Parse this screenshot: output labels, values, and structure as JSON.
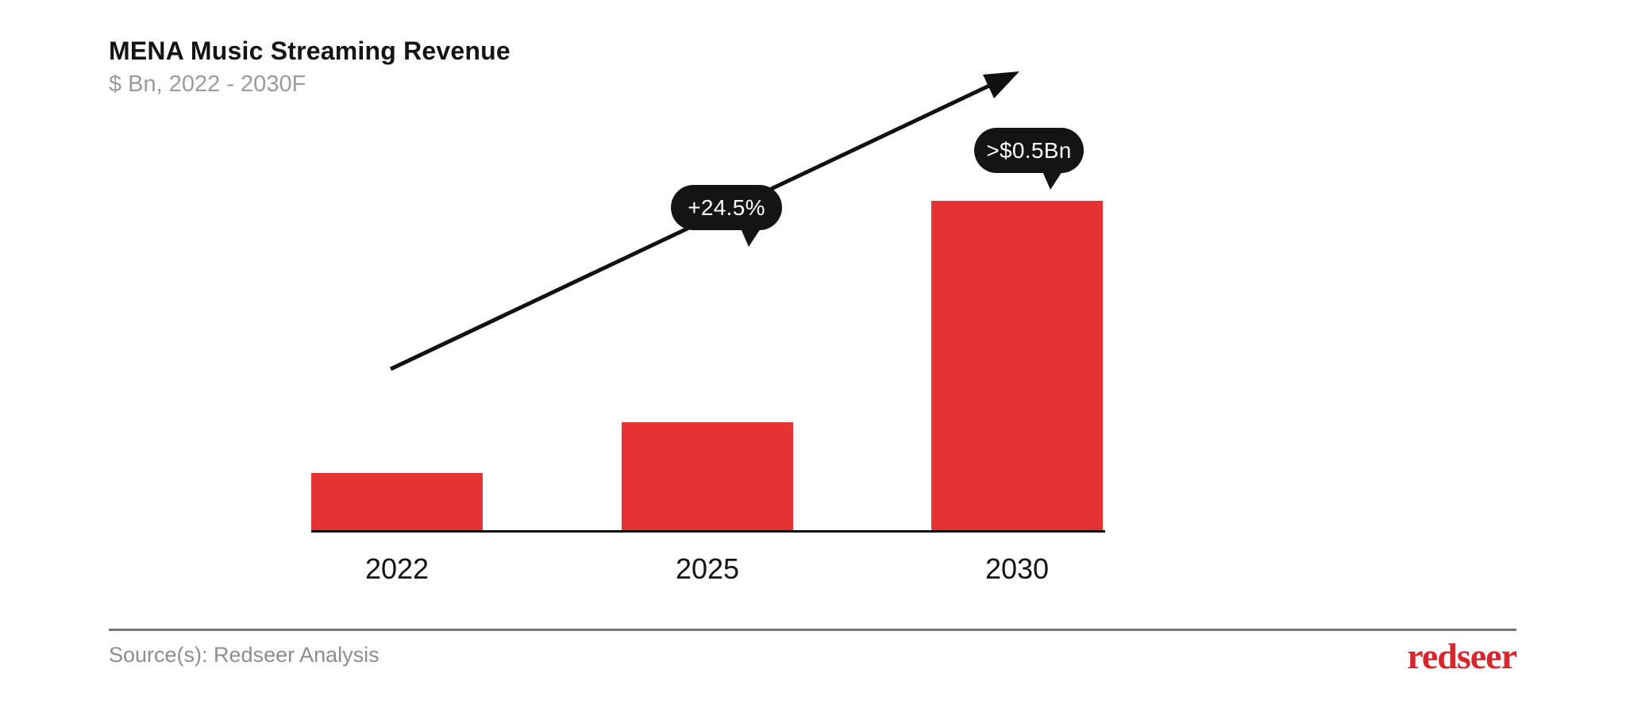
{
  "header": {
    "title": "MENA Music Streaming Revenue",
    "subtitle": "$ Bn, 2022 - 2030F"
  },
  "annotations": {
    "growth": "+24.5%",
    "value_2030": ">$0.5Bn"
  },
  "footer": {
    "source": "Source(s): Redseer Analysis",
    "brand": "redseer"
  },
  "colors": {
    "bar": "#e63232",
    "bubble": "#141414",
    "axis": "#111111",
    "brand_red": "#d9262c",
    "subtitle_gray": "#9b9b9b"
  },
  "chart_data": {
    "type": "bar",
    "title": "MENA Music Streaming Revenue",
    "subtitle": "$ Bn, 2022 - 2030F",
    "unit": "$ Bn",
    "categories": [
      "2022",
      "2025",
      "2030"
    ],
    "values": [
      0.09,
      0.17,
      0.52
    ],
    "ylim": [
      0,
      0.55
    ],
    "grid": false,
    "legend": false,
    "bar_color": "#e63232",
    "annotations": [
      {
        "text": "+24.5%",
        "kind": "growth-rate-callout",
        "position": "on-trend-arrow"
      },
      {
        "text": ">$0.5Bn",
        "kind": "value-callout",
        "category": "2030"
      }
    ],
    "trend_arrow": {
      "from_category": "2022",
      "to_category": "2030",
      "direction": "up-right"
    }
  }
}
